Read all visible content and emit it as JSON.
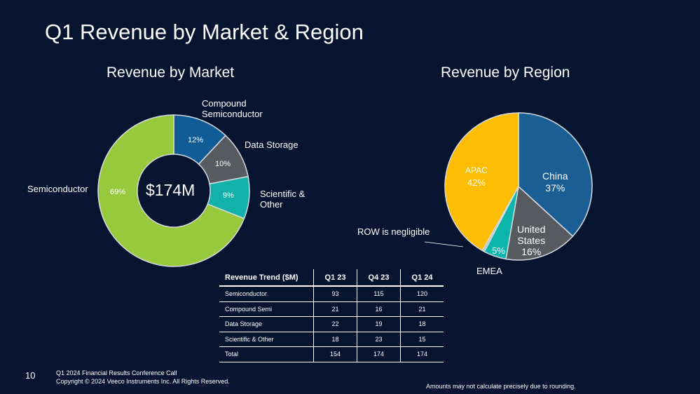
{
  "slide": {
    "title": "Q1 Revenue by Market & Region",
    "page_number": "10",
    "footer_line1": "Q1 2024 Financial Results Conference Call",
    "footer_line2": "Copyright © 2024 Veeco Instruments Inc. All Rights Reserved.",
    "note": "Amounts may not calculate precisely due to rounding."
  },
  "chart_data": [
    {
      "type": "pie",
      "variant": "donut",
      "title": "Revenue by Market",
      "center_label": "$174M",
      "slices": [
        {
          "name": "Compound Semiconductor",
          "label_lines": [
            "Compound",
            "Semiconductor"
          ],
          "value": 12,
          "percent_label": "12%",
          "color": "#0f5c96"
        },
        {
          "name": "Data Storage",
          "label_lines": [
            "Data Storage"
          ],
          "value": 10,
          "percent_label": "10%",
          "color": "#575a5f"
        },
        {
          "name": "Scientific & Other",
          "label_lines": [
            "Scientific &",
            "Other"
          ],
          "value": 9,
          "percent_label": "9%",
          "color": "#12b2a8"
        },
        {
          "name": "Semiconductor",
          "label_lines": [
            "Semiconductor"
          ],
          "value": 69,
          "percent_label": "69%",
          "color": "#97c93c"
        }
      ]
    },
    {
      "type": "pie",
      "title": "Revenue by Region",
      "annotation": "ROW is negligible",
      "slices": [
        {
          "name": "China",
          "label_lines": [
            "China",
            "37%"
          ],
          "value": 37,
          "color": "#1a5e94"
        },
        {
          "name": "United States",
          "label_lines": [
            "United",
            "States",
            "16%"
          ],
          "value": 16,
          "color": "#575a5f"
        },
        {
          "name": "EMEA",
          "label_lines": [
            "5%"
          ],
          "outer_label": "EMEA",
          "value": 5,
          "color": "#0cb5ac"
        },
        {
          "name": "ROW",
          "label_lines": [],
          "value": 0.5,
          "color": "#bfc3c8"
        },
        {
          "name": "APAC",
          "label_lines": [
            "APAC",
            "42%"
          ],
          "value": 42,
          "color": "#fdbd02"
        }
      ]
    },
    {
      "type": "table",
      "title": "Revenue Trend ($M)",
      "columns": [
        "Revenue Trend ($M)",
        "Q1 23",
        "Q4 23",
        "Q1 24"
      ],
      "rows": [
        [
          "Semiconductor",
          "93",
          "115",
          "120"
        ],
        [
          "Compound Semi",
          "21",
          "16",
          "21"
        ],
        [
          "Data Storage",
          "22",
          "19",
          "18"
        ],
        [
          "Scientific & Other",
          "18",
          "23",
          "15"
        ],
        [
          "Total",
          "154",
          "174",
          "174"
        ]
      ]
    }
  ]
}
